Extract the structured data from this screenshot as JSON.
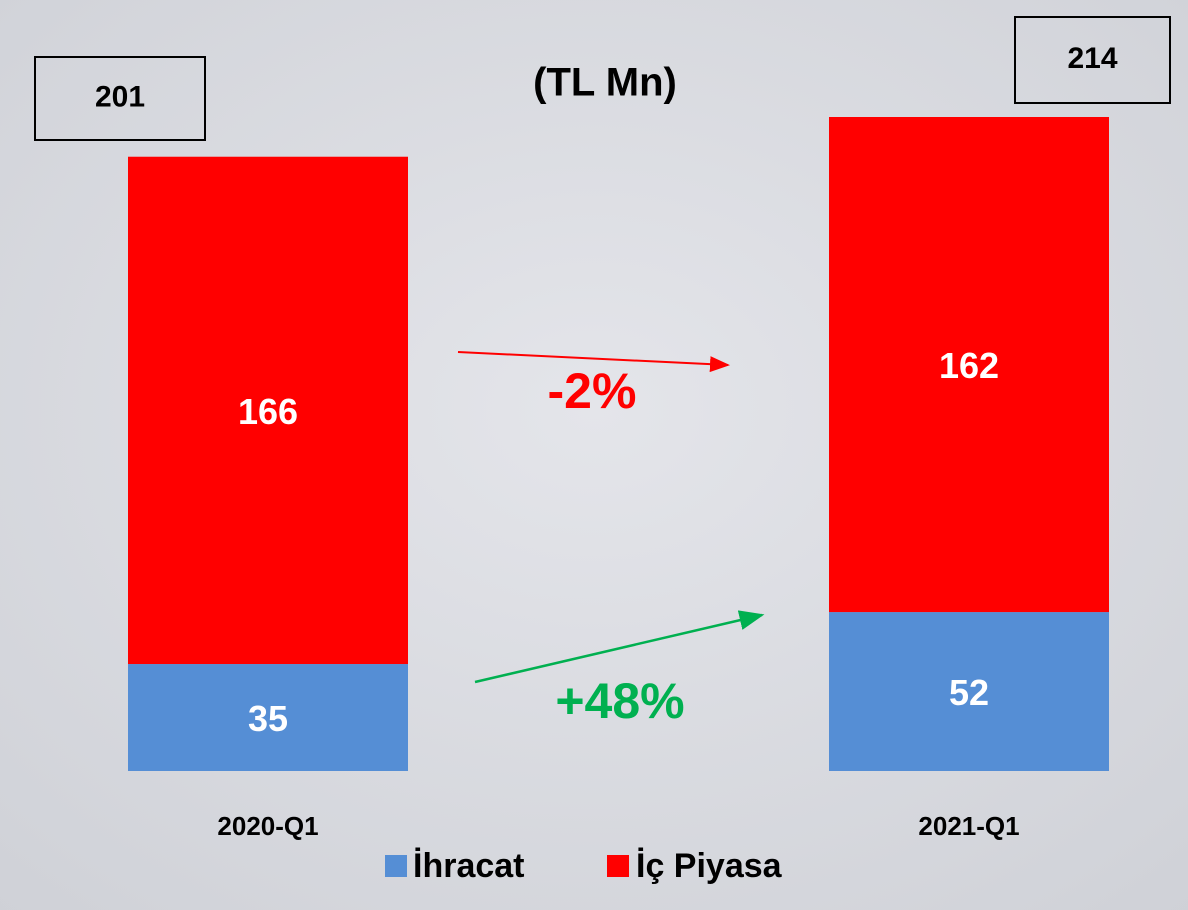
{
  "chart_data": {
    "type": "stacked-bar",
    "title": "(TL Mn)",
    "categories": [
      "2020-Q1",
      "2021-Q1"
    ],
    "series": [
      {
        "name": "İhracat",
        "color": "#558ed5",
        "values": [
          35,
          52
        ]
      },
      {
        "name": "İç Piyasa",
        "color": "#ff0000",
        "values": [
          166,
          162
        ]
      }
    ],
    "totals": [
      201,
      214
    ],
    "annotations": [
      {
        "text": "-2%",
        "color": "#ff0000"
      },
      {
        "text": "+48%",
        "color": "#00b050"
      }
    ]
  }
}
